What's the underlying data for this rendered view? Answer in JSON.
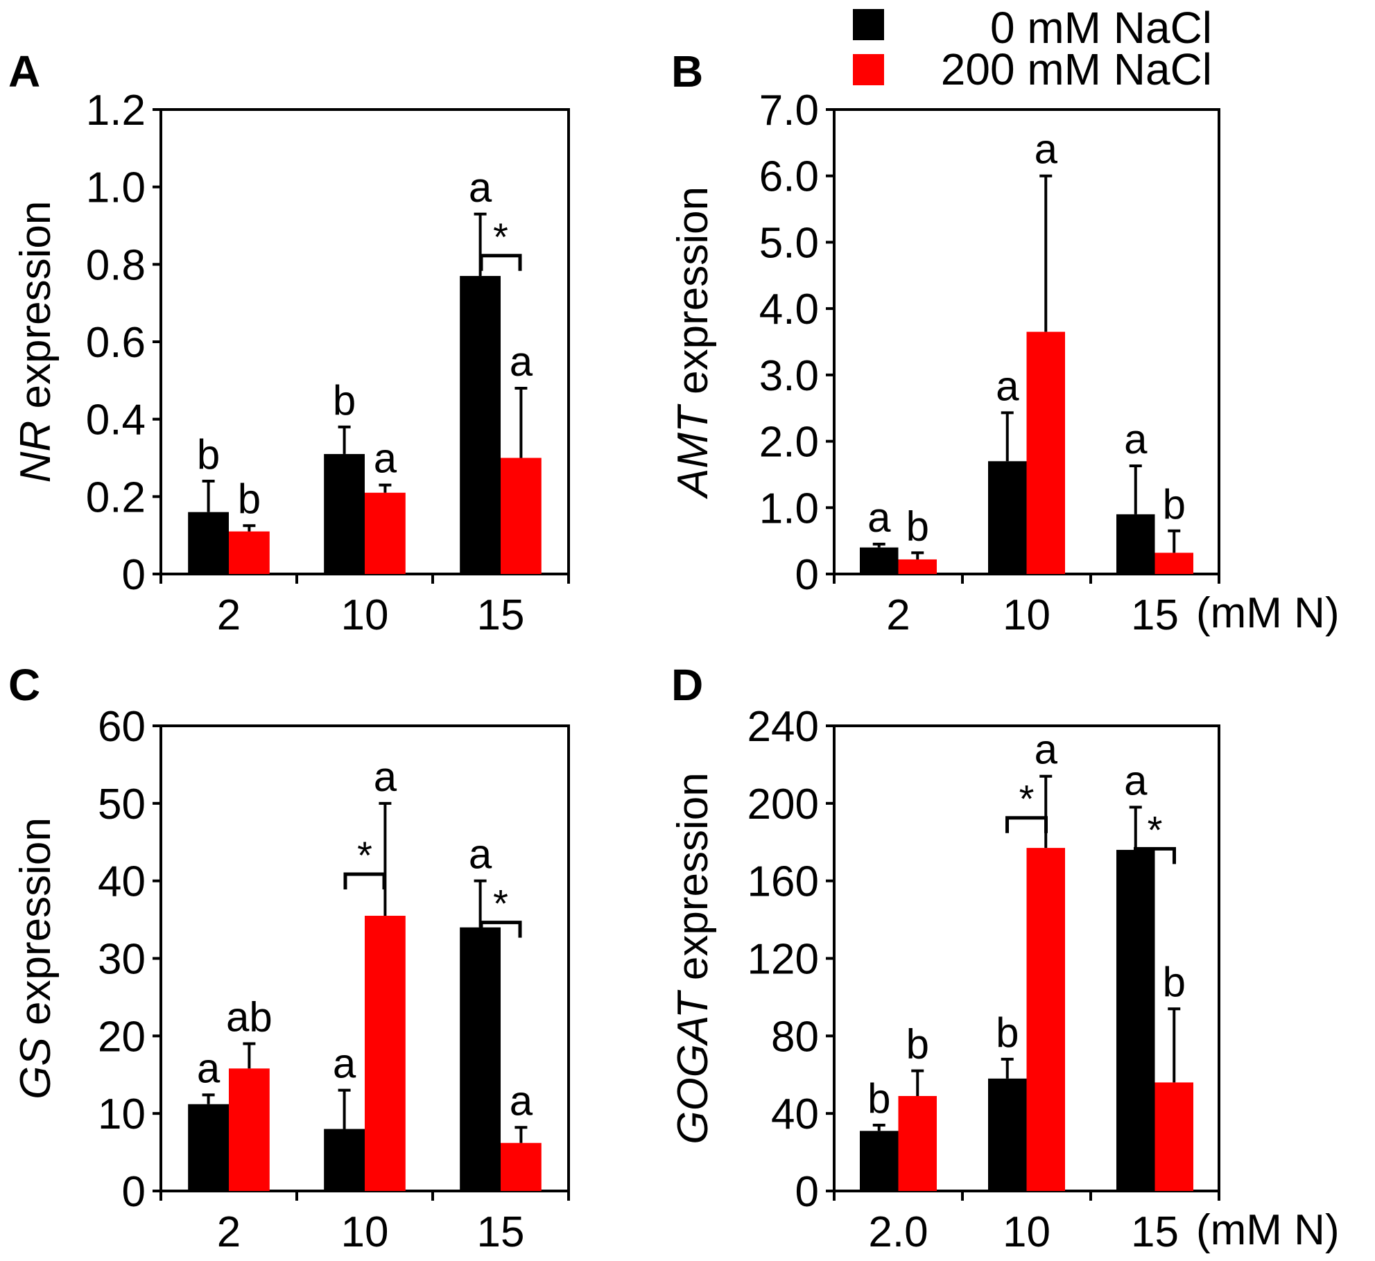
{
  "colors": {
    "control": "#000000",
    "salt": "#ff0000"
  },
  "legend": [
    {
      "key": "control",
      "label": "0  mM NaCl"
    },
    {
      "key": "salt",
      "label": "200 mM NaCl"
    }
  ],
  "chart_data": [
    {
      "panel": "A",
      "type": "bar",
      "gene": "NR",
      "ylabel_suffix": " expression",
      "categories": [
        "2",
        "10",
        "15"
      ],
      "x_unit": "",
      "ylim": [
        0,
        1.2
      ],
      "yticks": [
        "0",
        "0.2",
        "0.4",
        "0.6",
        "0.8",
        "1.0",
        "1.2"
      ],
      "series": [
        {
          "name": "0  mM NaCl",
          "key": "control",
          "values": [
            0.16,
            0.31,
            0.77
          ],
          "errors": [
            0.08,
            0.07,
            0.16
          ],
          "letters": [
            "b",
            "b",
            "a"
          ]
        },
        {
          "name": "200 mM NaCl",
          "key": "salt",
          "values": [
            0.11,
            0.21,
            0.3
          ],
          "errors": [
            0.015,
            0.02,
            0.18
          ],
          "letters": [
            "b",
            "a",
            "a"
          ]
        }
      ],
      "stars": [
        2
      ]
    },
    {
      "panel": "B",
      "type": "bar",
      "gene": "AMT",
      "ylabel_suffix": " expression",
      "categories": [
        "2",
        "10",
        "15"
      ],
      "x_unit": "(mM N)",
      "ylim": [
        0,
        7.0
      ],
      "yticks": [
        "0",
        "1.0",
        "2.0",
        "3.0",
        "4.0",
        "5.0",
        "6.0",
        "7.0"
      ],
      "series": [
        {
          "name": "0  mM NaCl",
          "key": "control",
          "values": [
            0.4,
            1.7,
            0.9
          ],
          "errors": [
            0.05,
            0.73,
            0.73
          ],
          "letters": [
            "a",
            "a",
            "a"
          ]
        },
        {
          "name": "200 mM NaCl",
          "key": "salt",
          "values": [
            0.22,
            3.65,
            0.32
          ],
          "errors": [
            0.1,
            2.35,
            0.33
          ],
          "letters": [
            "b",
            "a",
            "b"
          ]
        }
      ],
      "stars": []
    },
    {
      "panel": "C",
      "type": "bar",
      "gene": "GS",
      "ylabel_suffix": " expression",
      "categories": [
        "2",
        "10",
        "15"
      ],
      "x_unit": "",
      "ylim": [
        0,
        60
      ],
      "yticks": [
        "0",
        "10",
        "20",
        "30",
        "40",
        "50",
        "60"
      ],
      "series": [
        {
          "name": "0  mM NaCl",
          "key": "control",
          "values": [
            11.2,
            8.0,
            34.0
          ],
          "errors": [
            1.2,
            5.0,
            6.0
          ],
          "letters": [
            "a",
            "a",
            "a"
          ]
        },
        {
          "name": "200 mM NaCl",
          "key": "salt",
          "values": [
            15.8,
            35.5,
            6.2
          ],
          "errors": [
            3.2,
            14.5,
            2.0
          ],
          "letters": [
            "ab",
            "a",
            "a"
          ]
        }
      ],
      "stars": [
        1,
        2
      ]
    },
    {
      "panel": "D",
      "type": "bar",
      "gene": "GOGAT",
      "ylabel_suffix": " expression",
      "categories": [
        "2.0",
        "10",
        "15"
      ],
      "x_unit": "(mM N)",
      "ylim": [
        0,
        240
      ],
      "yticks": [
        "0",
        "40",
        "80",
        "120",
        "160",
        "200",
        "240"
      ],
      "series": [
        {
          "name": "0  mM NaCl",
          "key": "control",
          "values": [
            31,
            58,
            176
          ],
          "errors": [
            3,
            10,
            22
          ],
          "letters": [
            "b",
            "b",
            "a"
          ]
        },
        {
          "name": "200 mM NaCl",
          "key": "salt",
          "values": [
            49,
            177,
            56
          ],
          "errors": [
            13,
            37,
            38
          ],
          "letters": [
            "b",
            "a",
            "b"
          ]
        }
      ],
      "stars": [
        1,
        2
      ]
    }
  ]
}
